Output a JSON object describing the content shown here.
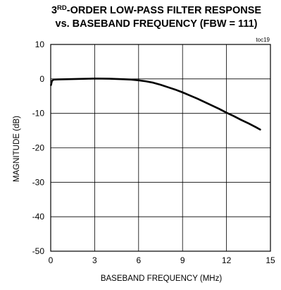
{
  "chart_data": {
    "type": "line",
    "title_line1_prefix": "3",
    "title_line1_sup": "RD",
    "title_line1_rest": "-ORDER LOW-PASS FILTER RESPONSE",
    "title_line2": "vs. BASEBAND FREQUENCY (FBW = 111)",
    "tag": "toc19",
    "xlabel": "BASEBAND FREQUENCY (MHz)",
    "ylabel": "MAGNITUDE  (dB)",
    "xlim": [
      0,
      15
    ],
    "ylim": [
      -50,
      10
    ],
    "x_ticks": [
      0,
      3,
      6,
      9,
      12,
      15
    ],
    "y_ticks": [
      10,
      0,
      -10,
      -20,
      -30,
      -40,
      -50
    ],
    "x_tick_labels": [
      "0",
      "3",
      "6",
      "9",
      "12",
      "15"
    ],
    "y_tick_labels": [
      "10",
      "0",
      "-10",
      "-20",
      "-30",
      "-40",
      "-50"
    ],
    "grid": true,
    "line_color": "#000000",
    "series": [
      {
        "x": [
          0.02,
          0.08,
          0.2,
          0.5,
          1,
          2,
          3,
          4,
          5,
          5.5,
          6,
          6.5,
          7,
          7.5,
          8,
          8.5,
          9,
          9.5,
          10,
          10.5,
          11,
          11.5,
          12,
          12.5,
          13,
          13.5,
          14,
          14.3
        ],
        "y": [
          -1.8,
          -0.6,
          -0.2,
          -0.15,
          -0.1,
          0.0,
          0.1,
          0.05,
          -0.1,
          -0.2,
          -0.4,
          -0.7,
          -1.1,
          -1.7,
          -2.4,
          -3.1,
          -3.9,
          -4.8,
          -5.7,
          -6.7,
          -7.7,
          -8.7,
          -9.8,
          -10.8,
          -11.9,
          -12.9,
          -14.0,
          -14.7
        ]
      }
    ]
  }
}
